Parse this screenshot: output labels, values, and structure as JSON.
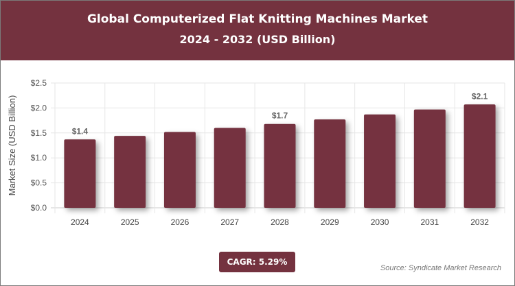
{
  "chart_data": {
    "type": "bar",
    "title": "Global Computerized Flat Knitting Machines Market",
    "subtitle": "2024 - 2032 (USD Billion)",
    "ylabel": "Market Size (USD Billion)",
    "xlabel": "",
    "categories": [
      "2024",
      "2025",
      "2026",
      "2027",
      "2028",
      "2029",
      "2030",
      "2031",
      "2032"
    ],
    "values": [
      1.37,
      1.44,
      1.52,
      1.6,
      1.68,
      1.77,
      1.87,
      1.97,
      2.07
    ],
    "data_labels": {
      "2024": "$1.4",
      "2028": "$1.7",
      "2032": "$2.1"
    },
    "yticks": [
      "$0.0",
      "$0.5",
      "$1.0",
      "$1.5",
      "$2.0",
      "$2.5"
    ],
    "ylim": [
      0,
      2.5
    ],
    "grid": true,
    "bar_color": "#74323f"
  },
  "cagr": "CAGR: 5.29%",
  "source": "Source: Syndicate Market Research"
}
